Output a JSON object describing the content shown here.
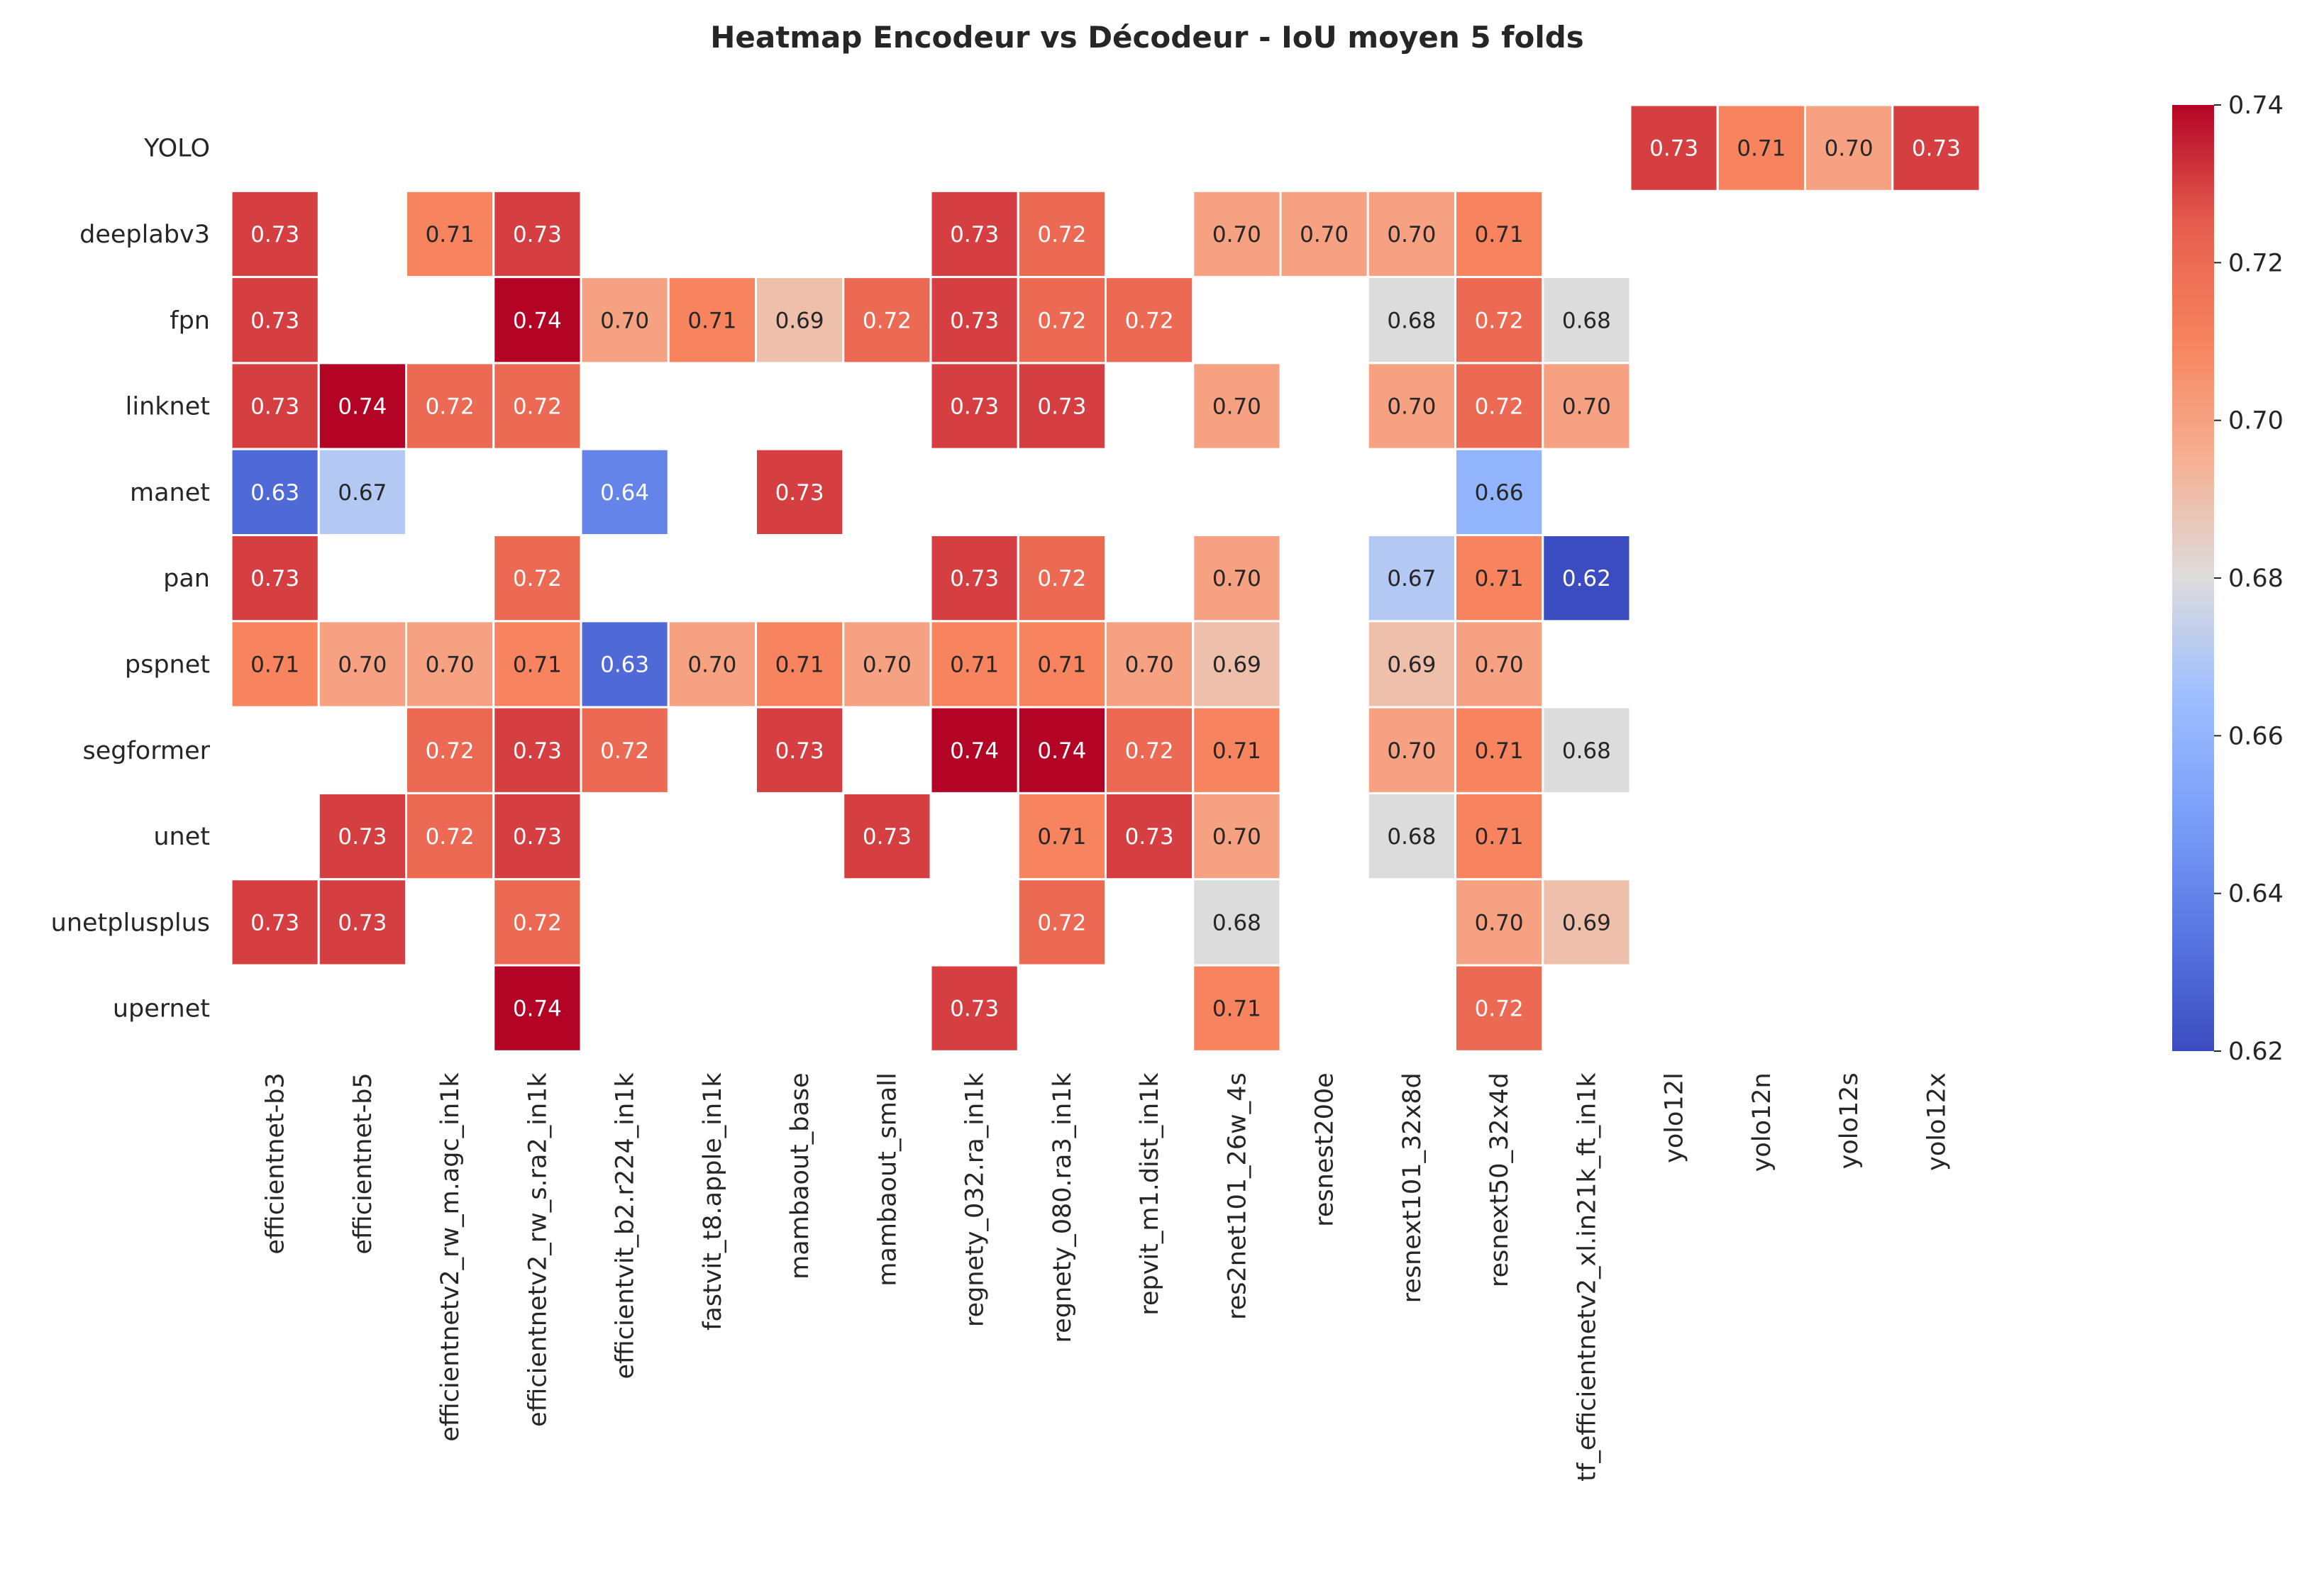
{
  "chart_data": {
    "type": "heatmap",
    "title": "Heatmap Encodeur vs Décodeur - IoU moyen 5 folds",
    "xlabel": "",
    "ylabel": "",
    "colormap": "coolwarm",
    "vmin": 0.62,
    "vmax": 0.74,
    "rows": [
      "YOLO",
      "deeplabv3",
      "fpn",
      "linknet",
      "manet",
      "pan",
      "pspnet",
      "segformer",
      "unet",
      "unetplusplus",
      "upernet"
    ],
    "columns": [
      "efficientnet-b3",
      "efficientnet-b5",
      "efficientnetv2_rw_m.agc_in1k",
      "efficientnetv2_rw_s.ra2_in1k",
      "efficientvit_b2.r224_in1k",
      "fastvit_t8.apple_in1k",
      "mambaout_base",
      "mambaout_small",
      "regnety_032.ra_in1k",
      "regnety_080.ra3_in1k",
      "repvit_m1.dist_in1k",
      "res2net101_26w_4s",
      "resnest200e",
      "resnext101_32x8d",
      "resnext50_32x4d",
      "tf_efficientnetv2_xl.in21k_ft_in1k",
      "yolo12l",
      "yolo12n",
      "yolo12s",
      "yolo12x"
    ],
    "values": [
      [
        null,
        null,
        null,
        null,
        null,
        null,
        null,
        null,
        null,
        null,
        null,
        null,
        null,
        null,
        null,
        null,
        0.73,
        0.71,
        0.7,
        0.73
      ],
      [
        0.73,
        null,
        0.71,
        0.73,
        null,
        null,
        null,
        null,
        0.73,
        0.72,
        null,
        0.7,
        0.7,
        0.7,
        0.71,
        null,
        null,
        null,
        null,
        null
      ],
      [
        0.73,
        null,
        null,
        0.74,
        0.7,
        0.71,
        0.69,
        0.72,
        0.73,
        0.72,
        0.72,
        null,
        null,
        0.68,
        0.72,
        0.68,
        null,
        null,
        null,
        null
      ],
      [
        0.73,
        0.74,
        0.72,
        0.72,
        null,
        null,
        null,
        null,
        0.73,
        0.73,
        null,
        0.7,
        null,
        0.7,
        0.72,
        0.7,
        null,
        null,
        null,
        null
      ],
      [
        0.63,
        0.67,
        null,
        null,
        0.64,
        null,
        0.73,
        null,
        null,
        null,
        null,
        null,
        null,
        null,
        0.66,
        null,
        null,
        null,
        null,
        null
      ],
      [
        0.73,
        null,
        null,
        0.72,
        null,
        null,
        null,
        null,
        0.73,
        0.72,
        null,
        0.7,
        null,
        0.67,
        0.71,
        0.62,
        null,
        null,
        null,
        null
      ],
      [
        0.71,
        0.7,
        0.7,
        0.71,
        0.63,
        0.7,
        0.71,
        0.7,
        0.71,
        0.71,
        0.7,
        0.69,
        null,
        0.69,
        0.7,
        null,
        null,
        null,
        null,
        null
      ],
      [
        null,
        null,
        0.72,
        0.73,
        0.72,
        null,
        0.73,
        null,
        0.74,
        0.74,
        0.72,
        0.71,
        null,
        0.7,
        0.71,
        0.68,
        null,
        null,
        null,
        null
      ],
      [
        null,
        0.73,
        0.72,
        0.73,
        null,
        null,
        null,
        0.73,
        null,
        0.71,
        0.73,
        0.7,
        null,
        0.68,
        0.71,
        null,
        null,
        null,
        null,
        null
      ],
      [
        0.73,
        0.73,
        null,
        0.72,
        null,
        null,
        null,
        null,
        null,
        0.72,
        null,
        0.68,
        null,
        null,
        0.7,
        0.69,
        null,
        null,
        null,
        null
      ],
      [
        null,
        null,
        null,
        0.74,
        null,
        null,
        null,
        null,
        0.73,
        null,
        null,
        0.71,
        null,
        null,
        0.72,
        null,
        null,
        null,
        null,
        null
      ]
    ],
    "colorbar_ticks": [
      "0.62",
      "0.64",
      "0.66",
      "0.68",
      "0.70",
      "0.72",
      "0.74"
    ],
    "grid": false,
    "legend": "colorbar-right"
  }
}
